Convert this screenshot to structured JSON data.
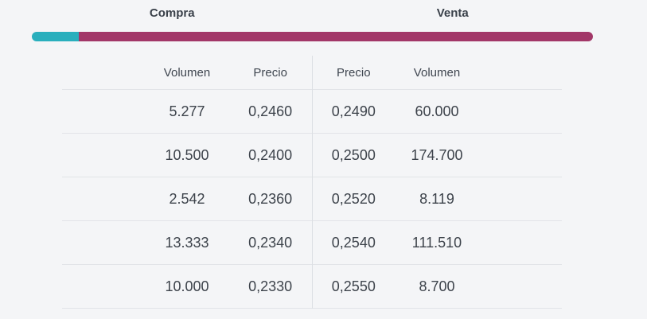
{
  "orderbook": {
    "buy_label": "Compra",
    "sell_label": "Venta",
    "depth_bar": {
      "buy_percent": 8.4,
      "buy_color": "#29afbd",
      "sell_color": "#a23768"
    },
    "columns": {
      "buy": [
        "Volumen",
        "Precio"
      ],
      "sell": [
        "Precio",
        "Volumen"
      ]
    },
    "rows": [
      {
        "buy_volume": "5.277",
        "buy_price": "0,2460",
        "sell_price": "0,2490",
        "sell_volume": "60.000"
      },
      {
        "buy_volume": "10.500",
        "buy_price": "0,2400",
        "sell_price": "0,2500",
        "sell_volume": "174.700"
      },
      {
        "buy_volume": "2.542",
        "buy_price": "0,2360",
        "sell_price": "0,2520",
        "sell_volume": "8.119"
      },
      {
        "buy_volume": "13.333",
        "buy_price": "0,2340",
        "sell_price": "0,2540",
        "sell_volume": "111.510"
      },
      {
        "buy_volume": "10.000",
        "buy_price": "0,2330",
        "sell_price": "0,2550",
        "sell_volume": "8.700"
      }
    ]
  }
}
